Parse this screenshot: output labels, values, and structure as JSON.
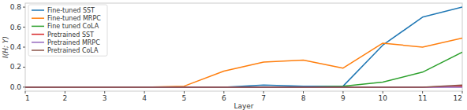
{
  "chart_data": {
    "type": "line",
    "x_label": "Layer",
    "y_label": "I(H; Y)",
    "x": [
      1,
      2,
      3,
      4,
      5,
      6,
      7,
      8,
      9,
      10,
      11,
      12
    ],
    "xlim": [
      1,
      12
    ],
    "xticks": [
      1,
      2,
      3,
      4,
      5,
      6,
      7,
      8,
      9,
      10,
      11,
      12
    ],
    "ylim": [
      -0.04,
      0.84
    ],
    "yticks": [
      {
        "value": 0,
        "label": "0.0"
      },
      {
        "value": 0.2,
        "label": "0.2"
      },
      {
        "value": 0.4,
        "label": "0.4"
      },
      {
        "value": 0.6,
        "label": "0.6"
      },
      {
        "value": 0.8,
        "label": "0.8"
      }
    ],
    "grid": false,
    "legend": "upper left",
    "series": [
      {
        "name": "Fine-tuned SST",
        "color": "#1f77b4",
        "values": [
          0,
          0,
          0,
          0,
          0,
          0,
          0.02,
          0.01,
          0.01,
          0.42,
          0.7,
          0.8
        ]
      },
      {
        "name": "Fine-tuned MRPC",
        "color": "#ff7f0e",
        "values": [
          0,
          0,
          0,
          0,
          0.01,
          0.16,
          0.25,
          0.27,
          0.19,
          0.44,
          0.4,
          0.49
        ]
      },
      {
        "name": "Fine tuned CoLA",
        "color": "#2ca02c",
        "values": [
          0,
          0,
          0,
          0,
          0,
          0,
          0,
          0,
          0.01,
          0.05,
          0.15,
          0.35
        ]
      },
      {
        "name": "Pretrained SST",
        "color": "#d62728",
        "values": [
          0,
          0,
          0,
          0,
          0,
          0,
          0,
          0,
          0,
          0,
          0,
          0.01
        ]
      },
      {
        "name": "Pretrained MRPC",
        "color": "#9467bd",
        "values": [
          0,
          0,
          0,
          0,
          0,
          0,
          0,
          0,
          0,
          0,
          0,
          0
        ]
      },
      {
        "name": "Pretrained CoLA",
        "color": "#8c564b",
        "values": [
          0,
          0,
          0,
          0,
          0,
          0,
          0,
          0,
          0,
          0,
          0,
          0.02
        ]
      }
    ]
  }
}
